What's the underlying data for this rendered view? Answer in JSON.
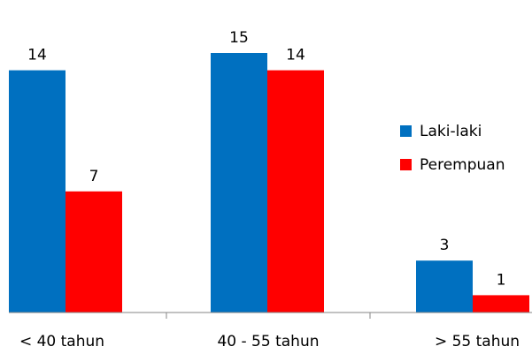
{
  "chart_data": {
    "type": "bar",
    "categories": [
      "< 40 tahun",
      "40 - 55 tahun",
      "> 55 tahun"
    ],
    "series": [
      {
        "name": "Laki-laki",
        "values": [
          14,
          15,
          3
        ],
        "color": "#0070C0"
      },
      {
        "name": "Perempuan",
        "values": [
          7,
          14,
          1
        ],
        "color": "#FF0000"
      }
    ],
    "title": "",
    "xlabel": "",
    "ylabel": "",
    "ylim": [
      0,
      15
    ],
    "grid": false,
    "legend": "right",
    "data_labels": true
  }
}
